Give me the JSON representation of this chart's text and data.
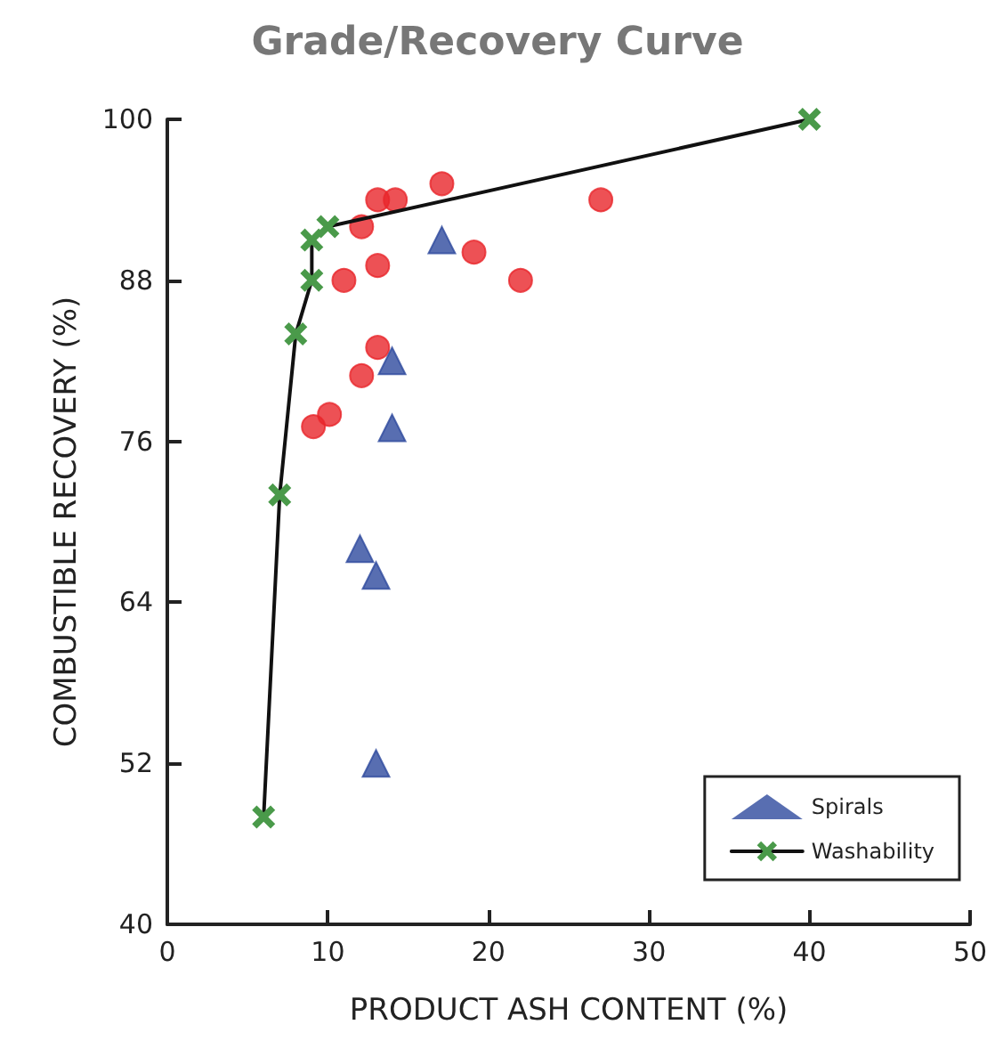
{
  "chart_data": {
    "type": "scatter",
    "title": "Grade/Recovery Curve",
    "xlabel": "PRODUCT ASH CONTENT (%)",
    "ylabel": "COMBUSTIBLE RECOVERY (%)",
    "xlim": [
      0,
      50
    ],
    "xticks": [
      0,
      10,
      20,
      30,
      40,
      50
    ],
    "ylim": [
      40,
      100
    ],
    "yticks": [
      40,
      52,
      64,
      76,
      88,
      100
    ],
    "grid": false,
    "legend": "bottom right",
    "series": [
      {
        "marker": "circle",
        "color": "#e8262a",
        "x": [
          13.1,
          14.2,
          17.1,
          12.1,
          19.1,
          22,
          11,
          13.1,
          13.1,
          12.1,
          10.1,
          9.1,
          27
        ],
        "values": [
          94,
          94,
          95.2,
          92,
          90.1,
          88,
          88,
          89.1,
          83,
          80.9,
          78,
          77.1,
          94
        ]
      },
      {
        "name": "Spirals",
        "marker": "triangle",
        "color": "#2e4a9e",
        "x": [
          17.1,
          14,
          14,
          12,
          13,
          13
        ],
        "values": [
          91,
          82,
          77,
          68,
          66,
          52
        ]
      },
      {
        "name": "Washability",
        "type": "line",
        "marker": "cross",
        "line_style": "solid",
        "color": "#4a9a4a",
        "x": [
          6,
          7,
          8,
          9,
          9,
          10,
          40
        ],
        "values": [
          48,
          72,
          84,
          88,
          91,
          92,
          100
        ]
      }
    ]
  }
}
